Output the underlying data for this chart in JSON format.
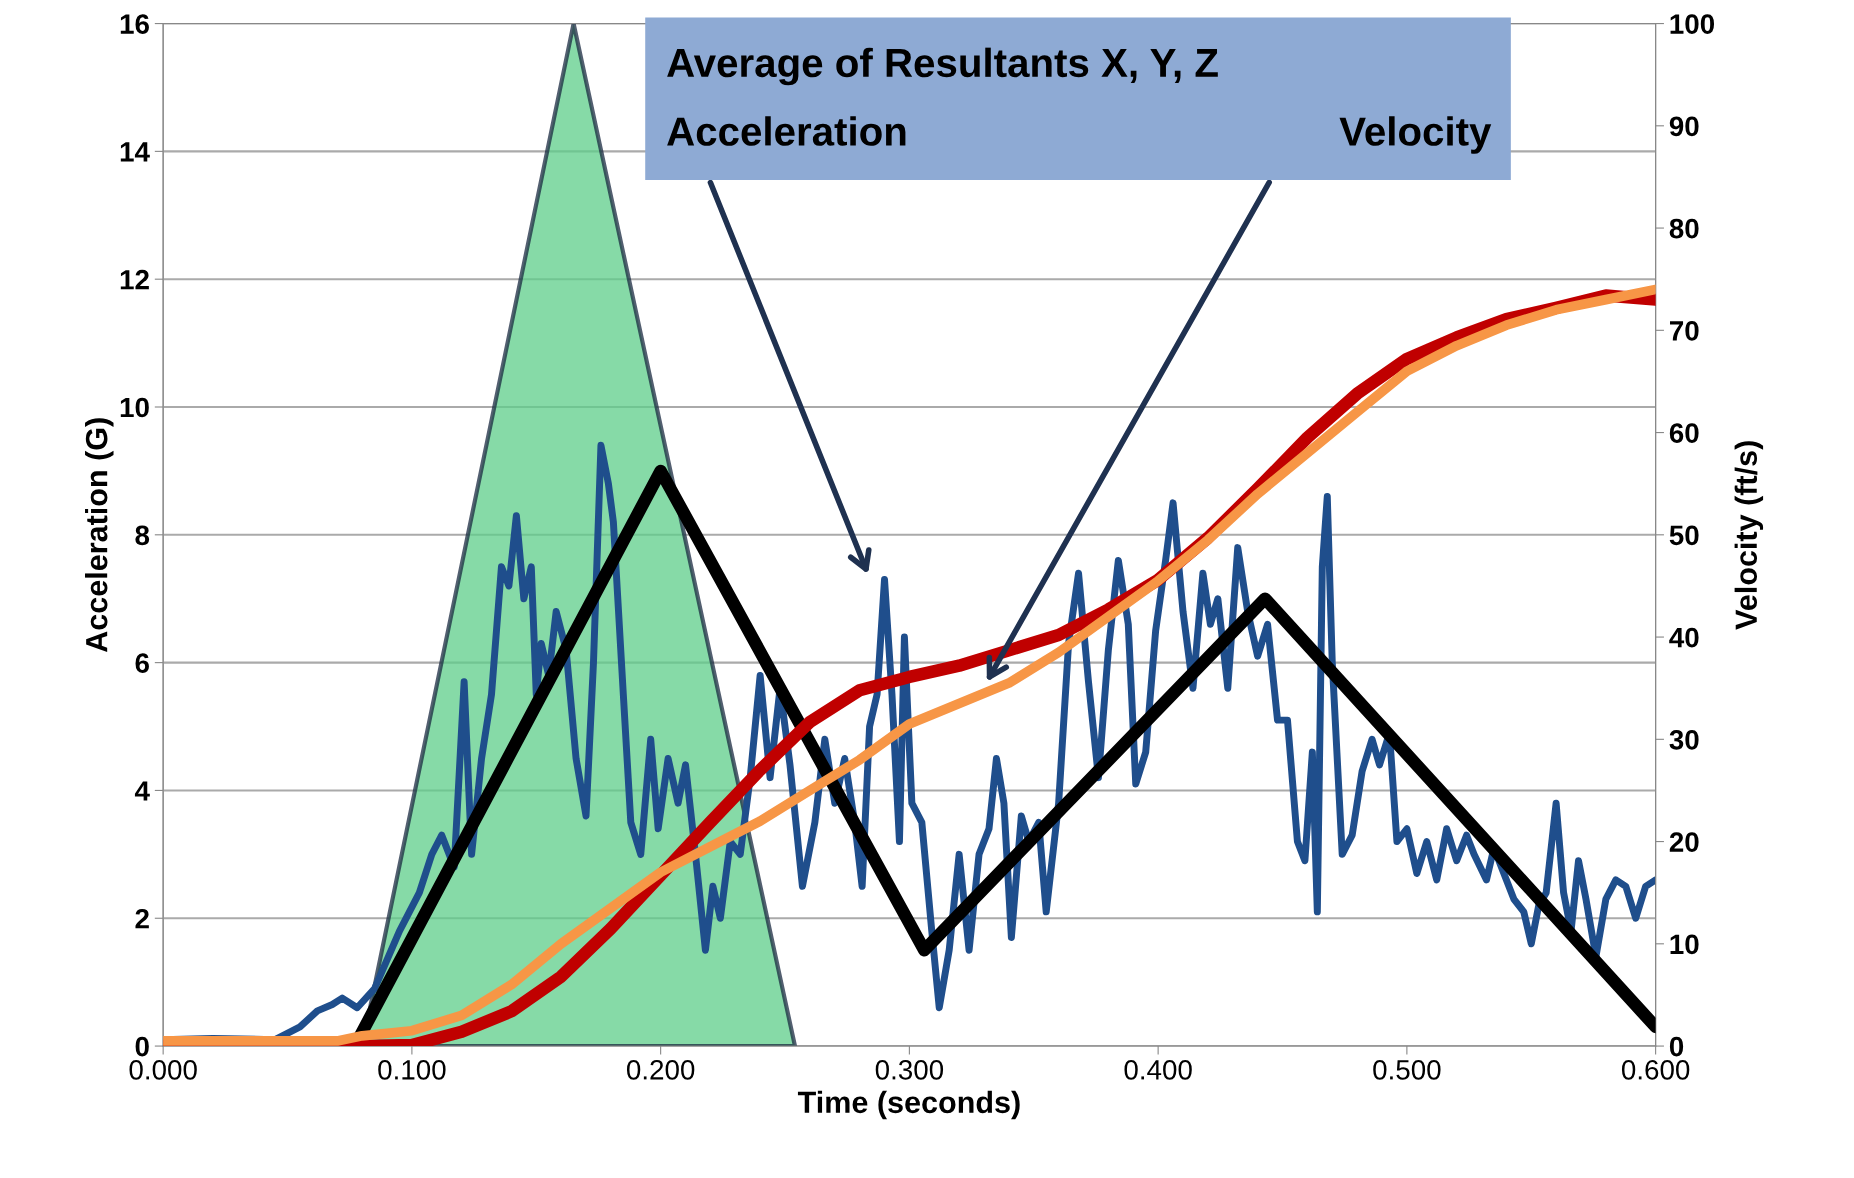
{
  "chart_data": {
    "type": "line",
    "xlabel": "Time (seconds)",
    "ylabel": "Acceleration (G)",
    "y2label": "Velocity (ft/s)",
    "xlim": [
      0.0,
      0.6
    ],
    "xticks": [
      {
        "value": 0.0,
        "label": "0.000"
      },
      {
        "value": 0.1,
        "label": "0.100"
      },
      {
        "value": 0.2,
        "label": "0.200"
      },
      {
        "value": 0.3,
        "label": "0.300"
      },
      {
        "value": 0.4,
        "label": "0.400"
      },
      {
        "value": 0.5,
        "label": "0.500"
      },
      {
        "value": 0.6,
        "label": "0.600"
      }
    ],
    "ylim": [
      0,
      16
    ],
    "yticks": [
      0,
      2,
      4,
      6,
      8,
      10,
      12,
      14,
      16
    ],
    "y2lim": [
      0,
      100
    ],
    "y2ticks": [
      0,
      10,
      20,
      30,
      40,
      50,
      60,
      70,
      80,
      90,
      100
    ],
    "grid": "y",
    "annotations": [
      "Average of Resultants X, Y, Z",
      "Acceleration",
      "Velocity"
    ],
    "series": [
      {
        "color": "#1f4e8c",
        "x": [
          0.0,
          0.02,
          0.045,
          0.055,
          0.062,
          0.068,
          0.072,
          0.078,
          0.085,
          0.095,
          0.103,
          0.108,
          0.112,
          0.117,
          0.121,
          0.124,
          0.128,
          0.132,
          0.136,
          0.139,
          0.142,
          0.145,
          0.148,
          0.15,
          0.152,
          0.155,
          0.158,
          0.162,
          0.166,
          0.17,
          0.173,
          0.176,
          0.179,
          0.181,
          0.185,
          0.188,
          0.192,
          0.196,
          0.199,
          0.203,
          0.207,
          0.21,
          0.214,
          0.218,
          0.221,
          0.224,
          0.228,
          0.232,
          0.236,
          0.24,
          0.244,
          0.248,
          0.252,
          0.257,
          0.262,
          0.266,
          0.27,
          0.274,
          0.278,
          0.281,
          0.284,
          0.287,
          0.29,
          0.293,
          0.296,
          0.298,
          0.301,
          0.305,
          0.309,
          0.312,
          0.316,
          0.32,
          0.324,
          0.328,
          0.332,
          0.335,
          0.338,
          0.341,
          0.345,
          0.348,
          0.352,
          0.355,
          0.36,
          0.364,
          0.368,
          0.372,
          0.376,
          0.38,
          0.384,
          0.388,
          0.391,
          0.395,
          0.399,
          0.403,
          0.406,
          0.41,
          0.414,
          0.418,
          0.421,
          0.424,
          0.428,
          0.432,
          0.436,
          0.44,
          0.444,
          0.448,
          0.452,
          0.456,
          0.459,
          0.462,
          0.464,
          0.466,
          0.468,
          0.47,
          0.474,
          0.478,
          0.482,
          0.486,
          0.489,
          0.493,
          0.496,
          0.5,
          0.504,
          0.508,
          0.512,
          0.516,
          0.52,
          0.524,
          0.527,
          0.532,
          0.535,
          0.539,
          0.543,
          0.547,
          0.55,
          0.553,
          0.556,
          0.56,
          0.563,
          0.566,
          0.569,
          0.572,
          0.576,
          0.58,
          0.584,
          0.588,
          0.592,
          0.596,
          0.6
        ],
        "values": [
          0.1,
          0.12,
          0.1,
          0.3,
          0.55,
          0.65,
          0.75,
          0.6,
          0.9,
          1.8,
          2.4,
          3.0,
          3.3,
          2.8,
          5.7,
          3.0,
          4.5,
          5.5,
          7.5,
          7.2,
          8.3,
          7.0,
          7.5,
          5.5,
          6.3,
          5.8,
          6.8,
          6.2,
          4.5,
          3.6,
          6.0,
          9.4,
          8.8,
          8.2,
          5.5,
          3.5,
          3.0,
          4.8,
          3.4,
          4.5,
          3.8,
          4.4,
          3.0,
          1.5,
          2.5,
          2.0,
          3.2,
          3.0,
          4.2,
          5.8,
          4.2,
          5.6,
          4.4,
          2.5,
          3.5,
          4.8,
          3.8,
          4.5,
          3.5,
          2.5,
          5.0,
          5.5,
          7.3,
          5.5,
          3.2,
          6.4,
          3.8,
          3.5,
          1.8,
          0.6,
          1.5,
          3.0,
          1.5,
          3.0,
          3.4,
          4.5,
          3.8,
          1.7,
          3.6,
          3.2,
          3.5,
          2.1,
          3.8,
          6.3,
          7.4,
          5.7,
          4.2,
          6.2,
          7.6,
          6.6,
          4.1,
          4.6,
          6.5,
          7.6,
          8.5,
          6.8,
          5.6,
          7.4,
          6.6,
          7.0,
          5.6,
          7.8,
          6.8,
          6.1,
          6.6,
          5.1,
          5.1,
          3.2,
          2.9,
          4.6,
          2.1,
          7.5,
          8.6,
          6.0,
          3.0,
          3.3,
          4.3,
          4.8,
          4.4,
          4.9,
          3.2,
          3.4,
          2.7,
          3.2,
          2.6,
          3.4,
          2.9,
          3.3,
          3.0,
          2.6,
          3.1,
          2.7,
          2.3,
          2.1,
          1.6,
          2.2,
          2.4,
          3.8,
          2.4,
          1.8,
          2.9,
          2.3,
          1.4,
          2.3,
          2.6,
          2.5,
          2.0,
          2.5,
          2.6
        ]
      },
      {
        "color": "#000000",
        "x": [
          0.077,
          0.2,
          0.306,
          0.443,
          0.6
        ],
        "values": [
          0,
          9.0,
          1.5,
          7.0,
          0.3
        ]
      },
      {
        "color": "#c00000",
        "axis": "y2",
        "x": [
          0.0,
          0.08,
          0.1,
          0.12,
          0.14,
          0.16,
          0.18,
          0.2,
          0.22,
          0.24,
          0.26,
          0.28,
          0.3,
          0.32,
          0.34,
          0.36,
          0.38,
          0.4,
          0.42,
          0.44,
          0.46,
          0.48,
          0.5,
          0.52,
          0.54,
          0.56,
          0.58,
          0.6
        ],
        "values": [
          0,
          0,
          0.1,
          1.4,
          3.4,
          6.8,
          11.5,
          16.7,
          21.9,
          27,
          31.7,
          34.8,
          36.1,
          37.2,
          38.7,
          40.2,
          42.7,
          45.6,
          49.7,
          54.5,
          59.5,
          63.8,
          67.2,
          69.3,
          71.1,
          72.2,
          73.4,
          73.0
        ]
      },
      {
        "color": "#f79646",
        "axis": "y2",
        "x": [
          0.0,
          0.07,
          0.08,
          0.1,
          0.12,
          0.14,
          0.16,
          0.18,
          0.2,
          0.22,
          0.24,
          0.26,
          0.28,
          0.3,
          0.32,
          0.34,
          0.36,
          0.38,
          0.4,
          0.42,
          0.44,
          0.46,
          0.48,
          0.5,
          0.52,
          0.54,
          0.56,
          0.58,
          0.6
        ],
        "values": [
          0.5,
          0.5,
          1,
          1.5,
          3,
          6,
          10,
          13.5,
          17,
          19.5,
          22,
          25,
          28,
          31.5,
          33.5,
          35.5,
          38.5,
          42,
          45.5,
          49.5,
          54,
          58,
          62,
          66,
          68.5,
          70.5,
          72,
          73,
          74
        ]
      },
      {
        "type": "area",
        "color": "#5dce8a",
        "x": [
          0.08,
          0.165,
          0.254
        ],
        "values": [
          0,
          16,
          0
        ]
      }
    ]
  }
}
